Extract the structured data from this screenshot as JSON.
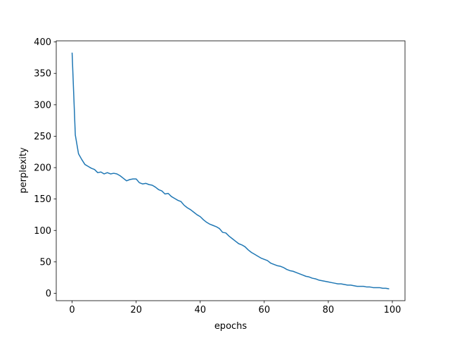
{
  "chart_data": {
    "type": "line",
    "xlabel": "epochs",
    "ylabel": "perplexity",
    "x": [
      0,
      1,
      2,
      3,
      4,
      5,
      6,
      7,
      8,
      9,
      10,
      11,
      12,
      13,
      14,
      15,
      16,
      17,
      18,
      19,
      20,
      21,
      22,
      23,
      24,
      25,
      26,
      27,
      28,
      29,
      30,
      31,
      32,
      33,
      34,
      35,
      36,
      37,
      38,
      39,
      40,
      41,
      42,
      43,
      44,
      45,
      46,
      47,
      48,
      49,
      50,
      51,
      52,
      53,
      54,
      55,
      56,
      57,
      58,
      59,
      60,
      61,
      62,
      63,
      64,
      65,
      66,
      67,
      68,
      69,
      70,
      71,
      72,
      73,
      74,
      75,
      76,
      77,
      78,
      79,
      80,
      81,
      82,
      83,
      84,
      85,
      86,
      87,
      88,
      89,
      90,
      91,
      92,
      93,
      94,
      95,
      96,
      97,
      98,
      99
    ],
    "series": [
      {
        "color": "#1f77b4",
        "values": [
          383,
          252,
          222,
          213,
          205,
          202,
          199,
          197,
          192,
          193,
          190,
          192,
          190,
          191,
          190,
          187,
          183,
          179,
          181,
          182,
          182,
          176,
          174,
          175,
          173,
          172,
          169,
          165,
          163,
          158,
          159,
          154,
          151,
          148,
          146,
          140,
          136,
          133,
          129,
          125,
          122,
          117,
          113,
          110,
          108,
          106,
          103,
          97,
          96,
          91,
          87,
          83,
          79,
          77,
          74,
          69,
          65,
          62,
          59,
          56,
          54,
          52,
          48,
          46,
          44,
          43,
          41,
          38,
          36,
          35,
          33,
          31,
          29,
          27,
          26,
          24,
          23,
          21,
          20,
          19,
          18,
          17,
          16,
          15,
          15,
          14,
          13,
          13,
          12,
          11,
          11,
          11,
          10,
          10,
          9,
          9,
          9,
          8,
          8,
          7
        ]
      }
    ],
    "xlim": [
      -4.95,
      103.95
    ],
    "ylim": [
      -11.8,
      401.8
    ],
    "xticks": [
      0,
      20,
      40,
      60,
      80,
      100
    ],
    "yticks": [
      0,
      50,
      100,
      150,
      200,
      250,
      300,
      350,
      400
    ]
  }
}
